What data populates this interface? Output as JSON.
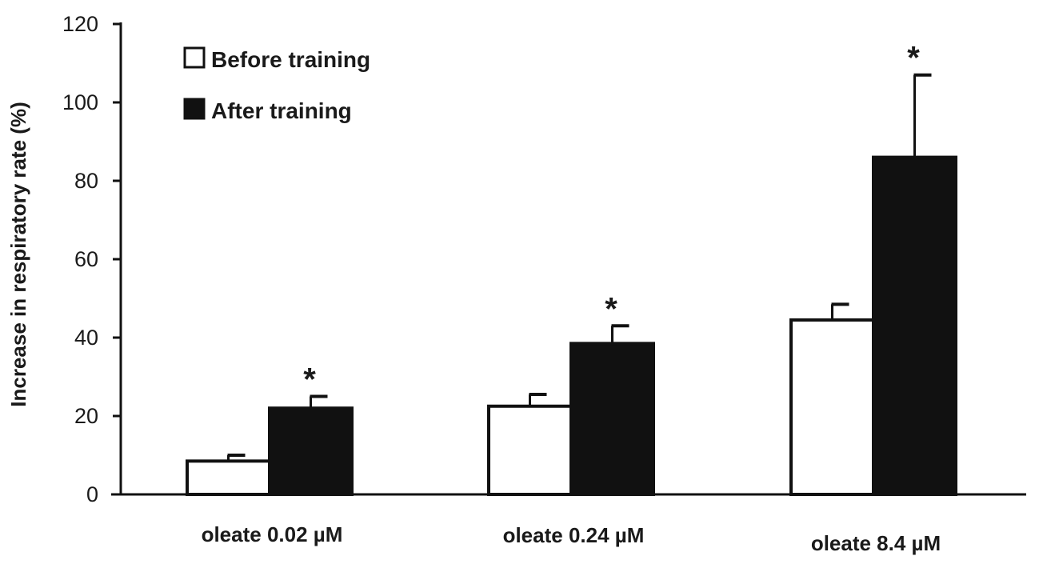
{
  "chart_data": {
    "type": "bar",
    "title": "",
    "xlabel": "",
    "ylabel": "Increase in respiratory rate (%)",
    "ylim": [
      0,
      120
    ],
    "yticks": [
      0,
      20,
      40,
      60,
      80,
      100,
      120
    ],
    "categories": [
      "oleate 0.02 µM",
      "oleate 0.24 µM",
      "oleate 8.4 µM"
    ],
    "series": [
      {
        "name": "Before training",
        "values": [
          8.5,
          22.5,
          44.5
        ],
        "errors": [
          1.5,
          3,
          4
        ],
        "color": "#ffffff"
      },
      {
        "name": "After training",
        "values": [
          22,
          38.5,
          86
        ],
        "errors": [
          3,
          4.5,
          21
        ],
        "color": "#111111"
      }
    ],
    "annotations": [
      {
        "category": "oleate 0.02 µM",
        "series": "After training",
        "text": "*"
      },
      {
        "category": "oleate 0.24 µM",
        "series": "After training",
        "text": "*"
      },
      {
        "category": "oleate 8.4 µM",
        "series": "After training",
        "text": "*"
      }
    ],
    "legend": {
      "placement": "top-left"
    },
    "grid": false
  }
}
